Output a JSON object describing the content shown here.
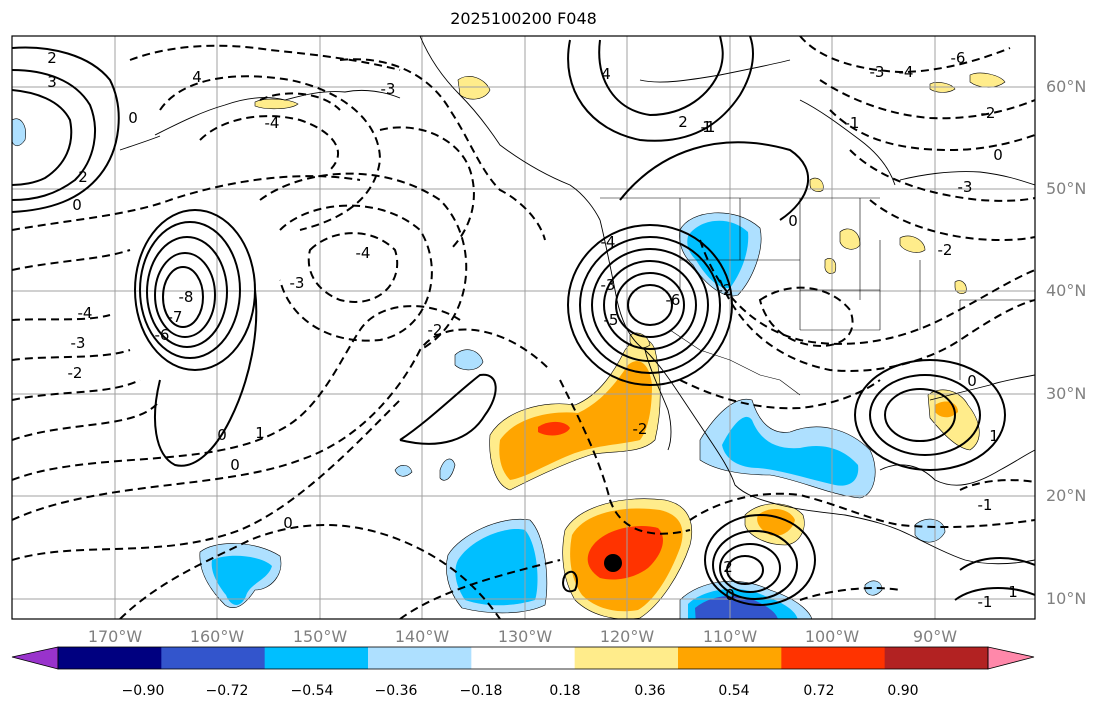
{
  "title": "2025100200 F048",
  "lat_labels": [
    "60°N",
    "50°N",
    "40°N",
    "30°N",
    "20°N",
    "10°N"
  ],
  "lon_labels": [
    "170°W",
    "160°W",
    "150°W",
    "140°W",
    "130°W",
    "120°W",
    "110°W",
    "100°W",
    "90°W"
  ],
  "contour_labels": [
    "2",
    "3",
    "4",
    "0",
    "0",
    "2",
    "-4",
    "-3",
    "-2",
    "-8",
    "-7",
    "-6",
    "-3",
    "-4",
    "-2",
    "0",
    "1",
    "0",
    "-2",
    "-4",
    "-3",
    "0",
    "-4",
    "-5",
    "-6",
    "-3",
    "-2",
    "1",
    "2",
    "4",
    "-1",
    "-2",
    "0",
    "-4",
    "-3",
    "-2",
    "-6",
    "-3",
    "0",
    "2",
    "1",
    "1",
    "0",
    "-1",
    "0",
    "-1",
    "-1"
  ],
  "colorbar": {
    "ticks": [
      "−0.90",
      "−0.72",
      "−0.54",
      "−0.36",
      "−0.18",
      "0.18",
      "0.36",
      "0.54",
      "0.72",
      "0.90"
    ],
    "colors": [
      "#9933cc",
      "#000080",
      "#3355cc",
      "#00bfff",
      "#aee0ff",
      "#ffffff",
      "#ffec8b",
      "#ffa500",
      "#ff3300",
      "#b22222",
      "#ff88aa"
    ]
  },
  "colors": {
    "frame": "#000000",
    "grid": "#a0a0a0",
    "axis_labels": "#808080",
    "marker": "#000000"
  }
}
